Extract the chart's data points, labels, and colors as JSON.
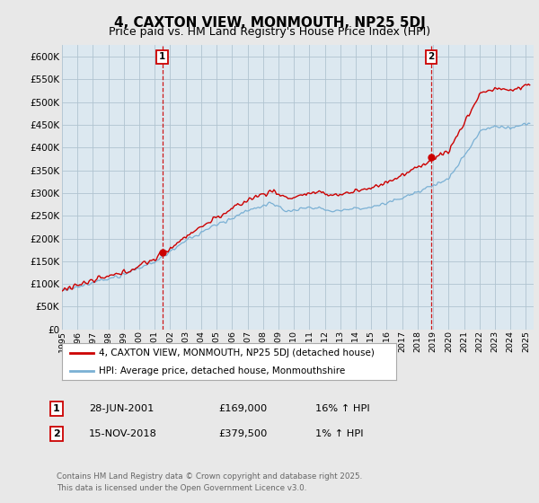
{
  "title": "4, CAXTON VIEW, MONMOUTH, NP25 5DJ",
  "subtitle": "Price paid vs. HM Land Registry's House Price Index (HPI)",
  "ylabel_ticks": [
    "£0",
    "£50K",
    "£100K",
    "£150K",
    "£200K",
    "£250K",
    "£300K",
    "£350K",
    "£400K",
    "£450K",
    "£500K",
    "£550K",
    "£600K"
  ],
  "ytick_vals": [
    0,
    50000,
    100000,
    150000,
    200000,
    250000,
    300000,
    350000,
    400000,
    450000,
    500000,
    550000,
    600000
  ],
  "ylim": [
    0,
    625000
  ],
  "xlim_start": 1995.0,
  "xlim_end": 2025.5,
  "marker1_x": 2001.49,
  "marker1_y": 169000,
  "marker2_x": 2018.88,
  "marker2_y": 379500,
  "legend_line1": "4, CAXTON VIEW, MONMOUTH, NP25 5DJ (detached house)",
  "legend_line2": "HPI: Average price, detached house, Monmouthshire",
  "footer": "Contains HM Land Registry data © Crown copyright and database right 2025.\nThis data is licensed under the Open Government Licence v3.0.",
  "table_rows": [
    {
      "num": "1",
      "date": "28-JUN-2001",
      "price": "£169,000",
      "pct": "16% ↑ HPI"
    },
    {
      "num": "2",
      "date": "15-NOV-2018",
      "price": "£379,500",
      "pct": "1% ↑ HPI"
    }
  ],
  "line_color_red": "#cc0000",
  "line_color_blue": "#7ab0d4",
  "bg_color": "#e8e8e8",
  "plot_bg_color": "#dce8f0",
  "grid_color": "#b0c4d0",
  "marker_line_color": "#cc0000",
  "title_fontsize": 11,
  "subtitle_fontsize": 9
}
